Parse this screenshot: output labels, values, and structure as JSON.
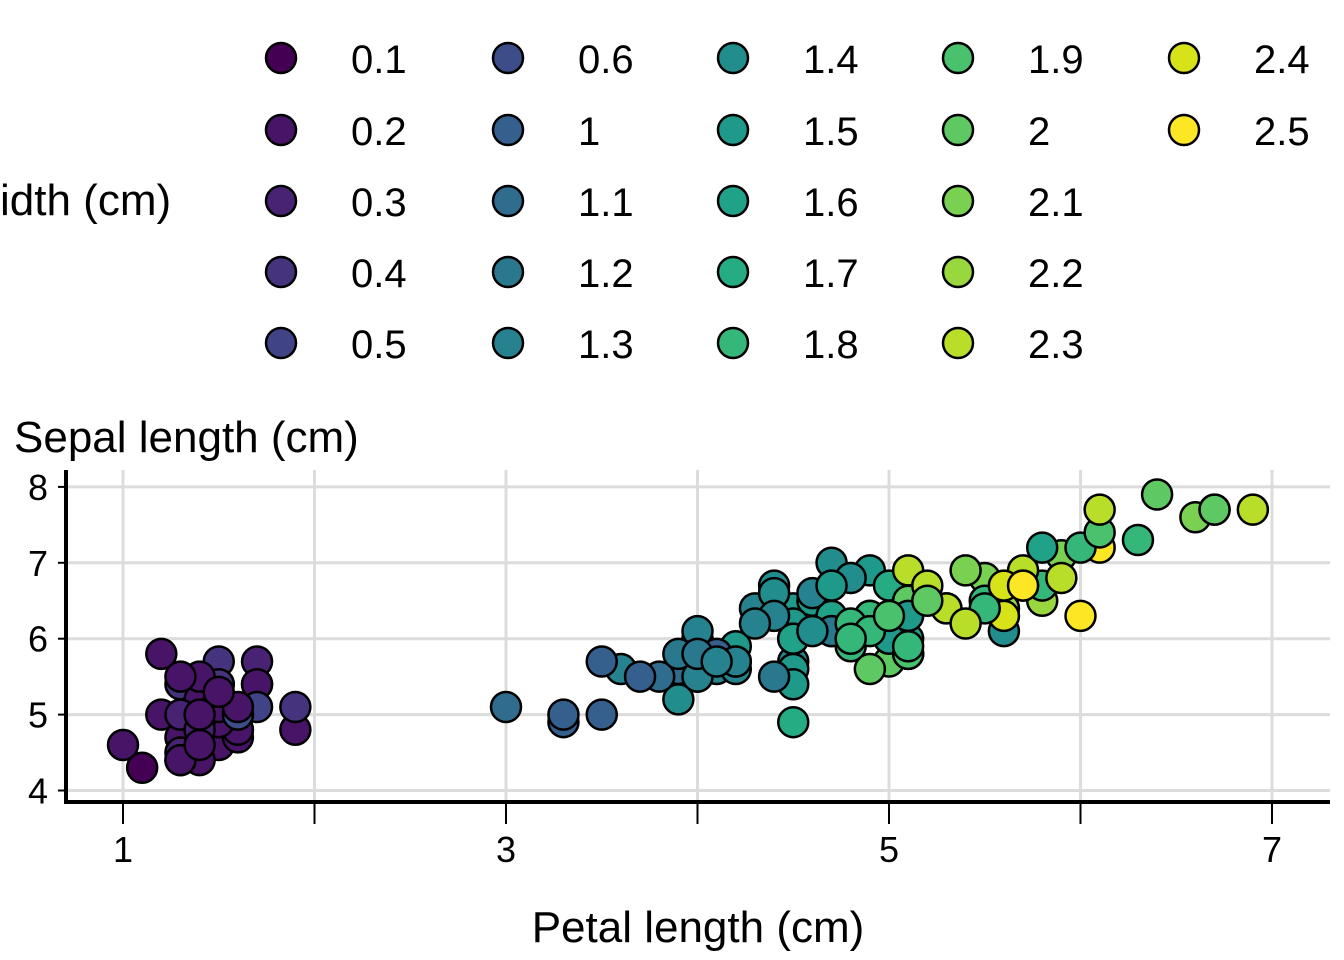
{
  "chart_data": {
    "type": "scatter",
    "title": "",
    "xlabel": "Petal length (cm)",
    "ylabel": "Sepal length (cm)",
    "xlim": [
      0.7,
      7.3
    ],
    "ylim": [
      3.85,
      8.2
    ],
    "x_ticks": [
      1,
      2,
      3,
      4,
      5,
      6,
      7
    ],
    "x_tick_labels": [
      "1",
      "",
      "3",
      "",
      "5",
      "",
      "7"
    ],
    "y_ticks": [
      4,
      5,
      6,
      7,
      8
    ],
    "y_tick_labels": [
      "4",
      "5",
      "6",
      "7",
      "8"
    ],
    "grid": true,
    "legend": {
      "title_visible": "idth (cm)",
      "placement": "top",
      "columns": 5,
      "entries": [
        {
          "label": "0.1",
          "color": "#440154"
        },
        {
          "label": "0.2",
          "color": "#481467"
        },
        {
          "label": "0.3",
          "color": "#482374"
        },
        {
          "label": "0.4",
          "color": "#46337e"
        },
        {
          "label": "0.5",
          "color": "#414387"
        },
        {
          "label": "0.6",
          "color": "#3d4d8a"
        },
        {
          "label": "1",
          "color": "#355f8d"
        },
        {
          "label": "1.1",
          "color": "#2f6c8e"
        },
        {
          "label": "1.2",
          "color": "#2a788e"
        },
        {
          "label": "1.3",
          "color": "#26828e"
        },
        {
          "label": "1.4",
          "color": "#228d8d"
        },
        {
          "label": "1.5",
          "color": "#1f998a"
        },
        {
          "label": "1.6",
          "color": "#1fa287"
        },
        {
          "label": "1.7",
          "color": "#25ac82"
        },
        {
          "label": "1.8",
          "color": "#35b779"
        },
        {
          "label": "1.9",
          "color": "#4ac16d"
        },
        {
          "label": "2",
          "color": "#5ec962"
        },
        {
          "label": "2.1",
          "color": "#7ad151"
        },
        {
          "label": "2.2",
          "color": "#98d83e"
        },
        {
          "label": "2.3",
          "color": "#b8de29"
        },
        {
          "label": "2.4",
          "color": "#d8e219"
        },
        {
          "label": "2.5",
          "color": "#fde725"
        }
      ]
    },
    "points": [
      {
        "x": 1.4,
        "y": 5.1,
        "w": 0.2
      },
      {
        "x": 1.4,
        "y": 4.9,
        "w": 0.2
      },
      {
        "x": 1.3,
        "y": 4.7,
        "w": 0.2
      },
      {
        "x": 1.5,
        "y": 4.6,
        "w": 0.2
      },
      {
        "x": 1.4,
        "y": 5.0,
        "w": 0.2
      },
      {
        "x": 1.7,
        "y": 5.4,
        "w": 0.4
      },
      {
        "x": 1.4,
        "y": 4.6,
        "w": 0.3
      },
      {
        "x": 1.5,
        "y": 5.0,
        "w": 0.2
      },
      {
        "x": 1.4,
        "y": 4.4,
        "w": 0.2
      },
      {
        "x": 1.5,
        "y": 4.9,
        "w": 0.1
      },
      {
        "x": 1.5,
        "y": 5.4,
        "w": 0.2
      },
      {
        "x": 1.6,
        "y": 4.8,
        "w": 0.2
      },
      {
        "x": 1.4,
        "y": 4.8,
        "w": 0.1
      },
      {
        "x": 1.1,
        "y": 4.3,
        "w": 0.1
      },
      {
        "x": 1.2,
        "y": 5.8,
        "w": 0.2
      },
      {
        "x": 1.5,
        "y": 5.7,
        "w": 0.4
      },
      {
        "x": 1.3,
        "y": 5.4,
        "w": 0.4
      },
      {
        "x": 1.4,
        "y": 5.1,
        "w": 0.3
      },
      {
        "x": 1.7,
        "y": 5.7,
        "w": 0.3
      },
      {
        "x": 1.5,
        "y": 5.1,
        "w": 0.3
      },
      {
        "x": 1.7,
        "y": 5.4,
        "w": 0.2
      },
      {
        "x": 1.5,
        "y": 5.1,
        "w": 0.4
      },
      {
        "x": 1.0,
        "y": 4.6,
        "w": 0.2
      },
      {
        "x": 1.7,
        "y": 5.1,
        "w": 0.5
      },
      {
        "x": 1.9,
        "y": 4.8,
        "w": 0.2
      },
      {
        "x": 1.6,
        "y": 5.0,
        "w": 0.2
      },
      {
        "x": 1.6,
        "y": 5.0,
        "w": 0.4
      },
      {
        "x": 1.5,
        "y": 5.2,
        "w": 0.2
      },
      {
        "x": 1.4,
        "y": 5.2,
        "w": 0.2
      },
      {
        "x": 1.6,
        "y": 4.7,
        "w": 0.2
      },
      {
        "x": 1.6,
        "y": 4.8,
        "w": 0.2
      },
      {
        "x": 1.5,
        "y": 5.4,
        "w": 0.4
      },
      {
        "x": 1.5,
        "y": 5.2,
        "w": 0.1
      },
      {
        "x": 1.4,
        "y": 5.5,
        "w": 0.2
      },
      {
        "x": 1.5,
        "y": 4.9,
        "w": 0.2
      },
      {
        "x": 1.2,
        "y": 5.0,
        "w": 0.2
      },
      {
        "x": 1.3,
        "y": 5.5,
        "w": 0.2
      },
      {
        "x": 1.4,
        "y": 4.9,
        "w": 0.1
      },
      {
        "x": 1.3,
        "y": 4.4,
        "w": 0.2
      },
      {
        "x": 1.5,
        "y": 5.1,
        "w": 0.2
      },
      {
        "x": 1.3,
        "y": 5.0,
        "w": 0.3
      },
      {
        "x": 1.3,
        "y": 4.5,
        "w": 0.3
      },
      {
        "x": 1.3,
        "y": 4.4,
        "w": 0.2
      },
      {
        "x": 1.6,
        "y": 5.0,
        "w": 0.6
      },
      {
        "x": 1.9,
        "y": 5.1,
        "w": 0.4
      },
      {
        "x": 1.4,
        "y": 4.8,
        "w": 0.3
      },
      {
        "x": 1.6,
        "y": 5.1,
        "w": 0.2
      },
      {
        "x": 1.4,
        "y": 4.6,
        "w": 0.2
      },
      {
        "x": 1.5,
        "y": 5.3,
        "w": 0.2
      },
      {
        "x": 1.4,
        "y": 5.0,
        "w": 0.2
      },
      {
        "x": 4.7,
        "y": 7.0,
        "w": 1.4
      },
      {
        "x": 4.5,
        "y": 6.4,
        "w": 1.5
      },
      {
        "x": 4.9,
        "y": 6.9,
        "w": 1.5
      },
      {
        "x": 4.0,
        "y": 5.5,
        "w": 1.3
      },
      {
        "x": 4.6,
        "y": 6.5,
        "w": 1.5
      },
      {
        "x": 4.5,
        "y": 5.7,
        "w": 1.3
      },
      {
        "x": 4.7,
        "y": 6.3,
        "w": 1.6
      },
      {
        "x": 3.3,
        "y": 4.9,
        "w": 1.0
      },
      {
        "x": 4.6,
        "y": 6.6,
        "w": 1.3
      },
      {
        "x": 3.9,
        "y": 5.2,
        "w": 1.4
      },
      {
        "x": 3.5,
        "y": 5.0,
        "w": 1.0
      },
      {
        "x": 4.2,
        "y": 5.9,
        "w": 1.5
      },
      {
        "x": 4.0,
        "y": 6.0,
        "w": 1.0
      },
      {
        "x": 4.7,
        "y": 6.1,
        "w": 1.4
      },
      {
        "x": 3.6,
        "y": 5.6,
        "w": 1.3
      },
      {
        "x": 4.4,
        "y": 6.7,
        "w": 1.4
      },
      {
        "x": 4.5,
        "y": 5.6,
        "w": 1.5
      },
      {
        "x": 4.1,
        "y": 5.8,
        "w": 1.0
      },
      {
        "x": 4.5,
        "y": 6.2,
        "w": 1.5
      },
      {
        "x": 3.9,
        "y": 5.6,
        "w": 1.1
      },
      {
        "x": 4.8,
        "y": 5.9,
        "w": 1.8
      },
      {
        "x": 4.0,
        "y": 6.1,
        "w": 1.3
      },
      {
        "x": 4.9,
        "y": 6.3,
        "w": 1.5
      },
      {
        "x": 4.7,
        "y": 6.1,
        "w": 1.2
      },
      {
        "x": 4.3,
        "y": 6.4,
        "w": 1.3
      },
      {
        "x": 4.4,
        "y": 6.6,
        "w": 1.4
      },
      {
        "x": 4.8,
        "y": 6.8,
        "w": 1.4
      },
      {
        "x": 5.0,
        "y": 6.7,
        "w": 1.7
      },
      {
        "x": 4.5,
        "y": 6.0,
        "w": 1.5
      },
      {
        "x": 3.5,
        "y": 5.7,
        "w": 1.0
      },
      {
        "x": 3.8,
        "y": 5.5,
        "w": 1.1
      },
      {
        "x": 3.7,
        "y": 5.5,
        "w": 1.0
      },
      {
        "x": 3.9,
        "y": 5.8,
        "w": 1.2
      },
      {
        "x": 5.1,
        "y": 6.0,
        "w": 1.6
      },
      {
        "x": 4.5,
        "y": 5.4,
        "w": 1.5
      },
      {
        "x": 4.5,
        "y": 6.0,
        "w": 1.6
      },
      {
        "x": 4.7,
        "y": 6.7,
        "w": 1.5
      },
      {
        "x": 4.4,
        "y": 6.3,
        "w": 1.3
      },
      {
        "x": 4.1,
        "y": 5.6,
        "w": 1.3
      },
      {
        "x": 4.0,
        "y": 5.5,
        "w": 1.3
      },
      {
        "x": 4.4,
        "y": 5.5,
        "w": 1.2
      },
      {
        "x": 4.6,
        "y": 6.1,
        "w": 1.4
      },
      {
        "x": 4.0,
        "y": 5.8,
        "w": 1.2
      },
      {
        "x": 3.3,
        "y": 5.0,
        "w": 1.0
      },
      {
        "x": 4.2,
        "y": 5.6,
        "w": 1.3
      },
      {
        "x": 4.2,
        "y": 5.7,
        "w": 1.2
      },
      {
        "x": 4.2,
        "y": 5.7,
        "w": 1.3
      },
      {
        "x": 4.3,
        "y": 6.2,
        "w": 1.3
      },
      {
        "x": 3.0,
        "y": 5.1,
        "w": 1.1
      },
      {
        "x": 4.1,
        "y": 5.7,
        "w": 1.3
      },
      {
        "x": 6.0,
        "y": 6.3,
        "w": 2.5
      },
      {
        "x": 5.1,
        "y": 5.8,
        "w": 1.9
      },
      {
        "x": 5.9,
        "y": 7.1,
        "w": 2.1
      },
      {
        "x": 5.6,
        "y": 6.3,
        "w": 1.8
      },
      {
        "x": 5.8,
        "y": 6.5,
        "w": 2.2
      },
      {
        "x": 6.6,
        "y": 7.6,
        "w": 2.1
      },
      {
        "x": 4.5,
        "y": 4.9,
        "w": 1.7
      },
      {
        "x": 6.3,
        "y": 7.3,
        "w": 1.8
      },
      {
        "x": 5.8,
        "y": 6.7,
        "w": 1.8
      },
      {
        "x": 6.1,
        "y": 7.2,
        "w": 2.5
      },
      {
        "x": 5.1,
        "y": 6.5,
        "w": 2.0
      },
      {
        "x": 5.3,
        "y": 6.4,
        "w": 1.9
      },
      {
        "x": 5.5,
        "y": 6.8,
        "w": 2.1
      },
      {
        "x": 5.0,
        "y": 5.7,
        "w": 2.0
      },
      {
        "x": 5.1,
        "y": 5.8,
        "w": 2.4
      },
      {
        "x": 5.3,
        "y": 6.4,
        "w": 2.3
      },
      {
        "x": 5.5,
        "y": 6.5,
        "w": 1.8
      },
      {
        "x": 6.7,
        "y": 7.7,
        "w": 2.2
      },
      {
        "x": 6.9,
        "y": 7.7,
        "w": 2.3
      },
      {
        "x": 5.0,
        "y": 6.0,
        "w": 1.5
      },
      {
        "x": 5.7,
        "y": 6.9,
        "w": 2.3
      },
      {
        "x": 4.9,
        "y": 5.6,
        "w": 2.0
      },
      {
        "x": 6.7,
        "y": 7.7,
        "w": 2.0
      },
      {
        "x": 4.9,
        "y": 6.3,
        "w": 1.8
      },
      {
        "x": 5.7,
        "y": 6.7,
        "w": 2.1
      },
      {
        "x": 6.0,
        "y": 7.2,
        "w": 1.8
      },
      {
        "x": 4.8,
        "y": 6.2,
        "w": 1.8
      },
      {
        "x": 4.9,
        "y": 6.1,
        "w": 1.8
      },
      {
        "x": 5.6,
        "y": 6.4,
        "w": 2.1
      },
      {
        "x": 5.8,
        "y": 7.2,
        "w": 1.6
      },
      {
        "x": 6.1,
        "y": 7.4,
        "w": 1.9
      },
      {
        "x": 6.4,
        "y": 7.9,
        "w": 2.0
      },
      {
        "x": 5.6,
        "y": 6.4,
        "w": 2.2
      },
      {
        "x": 5.1,
        "y": 6.3,
        "w": 1.5
      },
      {
        "x": 5.6,
        "y": 6.1,
        "w": 1.4
      },
      {
        "x": 6.1,
        "y": 7.7,
        "w": 2.3
      },
      {
        "x": 5.6,
        "y": 6.3,
        "w": 2.4
      },
      {
        "x": 5.5,
        "y": 6.4,
        "w": 1.8
      },
      {
        "x": 4.8,
        "y": 6.0,
        "w": 1.8
      },
      {
        "x": 5.4,
        "y": 6.9,
        "w": 2.1
      },
      {
        "x": 5.6,
        "y": 6.7,
        "w": 2.4
      },
      {
        "x": 5.1,
        "y": 6.9,
        "w": 2.3
      },
      {
        "x": 5.1,
        "y": 5.8,
        "w": 1.9
      },
      {
        "x": 5.9,
        "y": 6.8,
        "w": 2.3
      },
      {
        "x": 5.7,
        "y": 6.7,
        "w": 2.5
      },
      {
        "x": 5.2,
        "y": 6.7,
        "w": 2.3
      },
      {
        "x": 5.0,
        "y": 6.3,
        "w": 1.9
      },
      {
        "x": 5.2,
        "y": 6.5,
        "w": 2.0
      },
      {
        "x": 5.4,
        "y": 6.2,
        "w": 2.3
      },
      {
        "x": 5.1,
        "y": 5.9,
        "w": 1.8
      }
    ]
  }
}
